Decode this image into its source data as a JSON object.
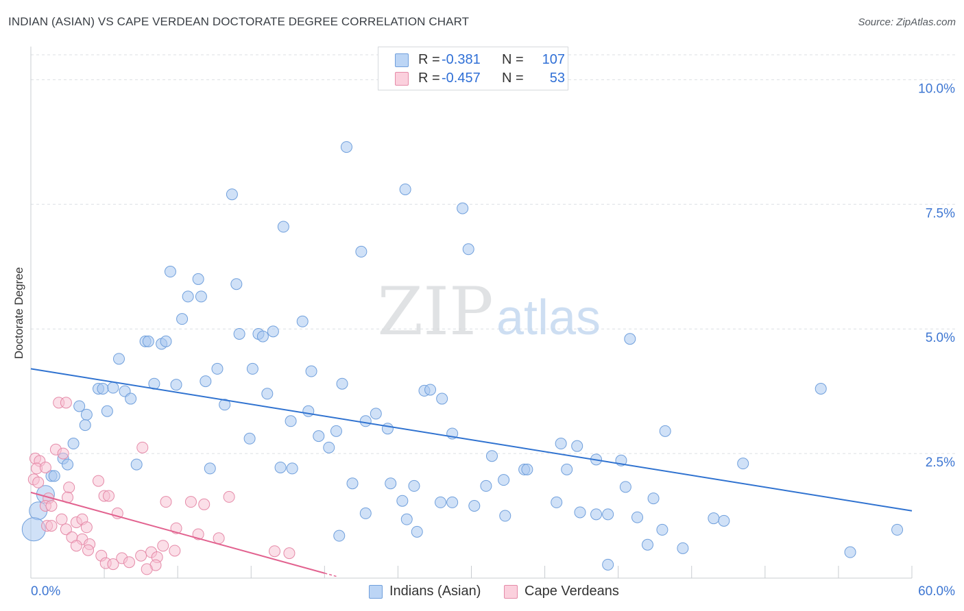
{
  "header": {
    "title": "INDIAN (ASIAN) VS CAPE VERDEAN DOCTORATE DEGREE CORRELATION CHART",
    "source": "Source: ZipAtlas.com"
  },
  "watermark": {
    "zip": "ZIP",
    "atlas": "atlas"
  },
  "legend": {
    "rows": [
      {
        "r_label": "R =",
        "r_value": "-0.381",
        "n_label": "N =",
        "n_value": "107",
        "color": "#9fc2ee"
      },
      {
        "r_label": "R =",
        "r_value": "-0.457",
        "n_label": "N =",
        "n_value": "53",
        "color": "#f6b3c8"
      }
    ]
  },
  "bottom_legend": {
    "items": [
      {
        "label": "Indians (Asian)",
        "color": "#9fc2ee"
      },
      {
        "label": "Cape Verdeans",
        "color": "#f6b3c8"
      }
    ]
  },
  "colors": {
    "blue_fill": "#a9c8f0",
    "blue_stroke": "#6f9fdc",
    "blue_line": "#2f72d0",
    "pink_fill": "#f8c0d1",
    "pink_stroke": "#e58aa8",
    "pink_line": "#e2628f",
    "axis_text": "#3d76d2",
    "grid": "#dcdfe3"
  },
  "chart_data": {
    "type": "scatter",
    "title": "INDIAN (ASIAN) VS CAPE VERDEAN DOCTORATE DEGREE CORRELATION CHART",
    "xlabel": "",
    "ylabel": "Doctorate Degree",
    "xlim": [
      0,
      60
    ],
    "ylim": [
      0,
      10.5
    ],
    "x_tick_labels": [
      "0.0%",
      "60.0%"
    ],
    "y_tick_labels": [
      "2.5%",
      "5.0%",
      "7.5%",
      "10.0%"
    ],
    "y_ticks": [
      2.5,
      5.0,
      7.5,
      10.0
    ],
    "grid": true,
    "legend_position": "top-center",
    "series": [
      {
        "name": "Indians (Asian)",
        "r": -0.381,
        "n": 107,
        "trend": {
          "x": [
            0,
            60
          ],
          "y": [
            4.2,
            1.35
          ]
        },
        "points": [
          [
            21.5,
            8.65
          ],
          [
            25.5,
            7.8
          ],
          [
            13.7,
            7.7
          ],
          [
            29.4,
            7.42
          ],
          [
            17.2,
            7.05
          ],
          [
            22.5,
            6.55
          ],
          [
            29.8,
            6.6
          ],
          [
            9.5,
            6.15
          ],
          [
            11.4,
            6.0
          ],
          [
            14.0,
            5.9
          ],
          [
            10.7,
            5.65
          ],
          [
            11.6,
            5.65
          ],
          [
            10.3,
            5.2
          ],
          [
            18.5,
            5.15
          ],
          [
            14.2,
            4.9
          ],
          [
            15.5,
            4.9
          ],
          [
            15.8,
            4.85
          ],
          [
            16.5,
            4.95
          ],
          [
            7.8,
            4.75
          ],
          [
            8.0,
            4.75
          ],
          [
            8.9,
            4.7
          ],
          [
            9.2,
            4.75
          ],
          [
            40.8,
            4.8
          ],
          [
            6.0,
            4.4
          ],
          [
            12.7,
            4.2
          ],
          [
            15.1,
            4.2
          ],
          [
            19.1,
            4.15
          ],
          [
            11.9,
            3.95
          ],
          [
            21.2,
            3.9
          ],
          [
            8.4,
            3.9
          ],
          [
            9.9,
            3.88
          ],
          [
            4.6,
            3.8
          ],
          [
            4.9,
            3.8
          ],
          [
            5.6,
            3.82
          ],
          [
            6.4,
            3.75
          ],
          [
            26.8,
            3.76
          ],
          [
            27.2,
            3.78
          ],
          [
            16.1,
            3.7
          ],
          [
            53.8,
            3.8
          ],
          [
            6.8,
            3.6
          ],
          [
            28.0,
            3.6
          ],
          [
            3.3,
            3.45
          ],
          [
            13.2,
            3.48
          ],
          [
            5.2,
            3.35
          ],
          [
            18.9,
            3.35
          ],
          [
            23.5,
            3.3
          ],
          [
            17.7,
            3.15
          ],
          [
            22.8,
            3.15
          ],
          [
            3.8,
            3.28
          ],
          [
            3.7,
            3.07
          ],
          [
            24.3,
            3.0
          ],
          [
            20.8,
            2.95
          ],
          [
            28.7,
            2.9
          ],
          [
            43.2,
            2.95
          ],
          [
            19.6,
            2.85
          ],
          [
            14.9,
            2.8
          ],
          [
            20.3,
            2.62
          ],
          [
            2.9,
            2.7
          ],
          [
            36.1,
            2.7
          ],
          [
            37.2,
            2.65
          ],
          [
            2.2,
            2.4
          ],
          [
            2.5,
            2.28
          ],
          [
            7.2,
            2.28
          ],
          [
            31.4,
            2.45
          ],
          [
            38.5,
            2.38
          ],
          [
            40.2,
            2.36
          ],
          [
            12.2,
            2.2
          ],
          [
            17.0,
            2.22
          ],
          [
            17.8,
            2.2
          ],
          [
            33.6,
            2.18
          ],
          [
            33.8,
            2.18
          ],
          [
            36.5,
            2.18
          ],
          [
            48.5,
            2.3
          ],
          [
            1.4,
            2.05
          ],
          [
            1.6,
            2.05
          ],
          [
            21.9,
            1.9
          ],
          [
            24.5,
            1.9
          ],
          [
            26.1,
            1.85
          ],
          [
            32.2,
            1.97
          ],
          [
            31.0,
            1.85
          ],
          [
            40.5,
            1.83
          ],
          [
            25.3,
            1.55
          ],
          [
            27.9,
            1.52
          ],
          [
            28.7,
            1.52
          ],
          [
            30.2,
            1.45
          ],
          [
            35.8,
            1.52
          ],
          [
            42.4,
            1.6
          ],
          [
            1.0,
            1.68
          ],
          [
            22.8,
            1.3
          ],
          [
            32.3,
            1.25
          ],
          [
            37.4,
            1.32
          ],
          [
            38.5,
            1.28
          ],
          [
            39.3,
            1.28
          ],
          [
            41.3,
            1.22
          ],
          [
            46.5,
            1.2
          ],
          [
            47.2,
            1.15
          ],
          [
            0.5,
            1.35
          ],
          [
            25.6,
            1.18
          ],
          [
            26.3,
            0.93
          ],
          [
            21.0,
            0.85
          ],
          [
            43.0,
            0.97
          ],
          [
            59.0,
            0.97
          ],
          [
            0.2,
            0.98
          ],
          [
            42.0,
            0.67
          ],
          [
            44.4,
            0.6
          ],
          [
            55.8,
            0.52
          ],
          [
            39.3,
            0.27
          ]
        ]
      },
      {
        "name": "Cape Verdeans",
        "r": -0.457,
        "n": 53,
        "trend": {
          "x": [
            0,
            20
          ],
          "y": [
            1.72,
            0.1
          ]
        },
        "points": [
          [
            1.9,
            3.52
          ],
          [
            2.4,
            3.52
          ],
          [
            7.6,
            2.62
          ],
          [
            1.7,
            2.58
          ],
          [
            2.2,
            2.5
          ],
          [
            0.3,
            2.4
          ],
          [
            0.6,
            2.35
          ],
          [
            0.4,
            2.2
          ],
          [
            1.0,
            2.22
          ],
          [
            0.2,
            1.98
          ],
          [
            0.5,
            1.92
          ],
          [
            4.6,
            1.95
          ],
          [
            2.6,
            1.82
          ],
          [
            1.2,
            1.6
          ],
          [
            2.5,
            1.62
          ],
          [
            5.0,
            1.65
          ],
          [
            5.3,
            1.65
          ],
          [
            13.5,
            1.63
          ],
          [
            9.2,
            1.53
          ],
          [
            10.9,
            1.53
          ],
          [
            11.8,
            1.48
          ],
          [
            1.0,
            1.45
          ],
          [
            1.4,
            1.45
          ],
          [
            5.9,
            1.3
          ],
          [
            2.1,
            1.18
          ],
          [
            3.1,
            1.12
          ],
          [
            3.5,
            1.18
          ],
          [
            1.1,
            1.05
          ],
          [
            1.4,
            1.05
          ],
          [
            3.8,
            1.02
          ],
          [
            9.9,
            1.0
          ],
          [
            2.4,
            0.98
          ],
          [
            11.4,
            0.88
          ],
          [
            12.8,
            0.8
          ],
          [
            2.8,
            0.82
          ],
          [
            3.5,
            0.78
          ],
          [
            4.0,
            0.68
          ],
          [
            3.1,
            0.65
          ],
          [
            3.9,
            0.56
          ],
          [
            9.0,
            0.65
          ],
          [
            9.8,
            0.55
          ],
          [
            16.6,
            0.54
          ],
          [
            17.6,
            0.5
          ],
          [
            8.2,
            0.52
          ],
          [
            8.6,
            0.42
          ],
          [
            7.5,
            0.45
          ],
          [
            4.8,
            0.45
          ],
          [
            6.2,
            0.4
          ],
          [
            5.1,
            0.3
          ],
          [
            5.6,
            0.28
          ],
          [
            6.7,
            0.32
          ],
          [
            8.5,
            0.26
          ],
          [
            7.9,
            0.18
          ]
        ]
      }
    ]
  }
}
